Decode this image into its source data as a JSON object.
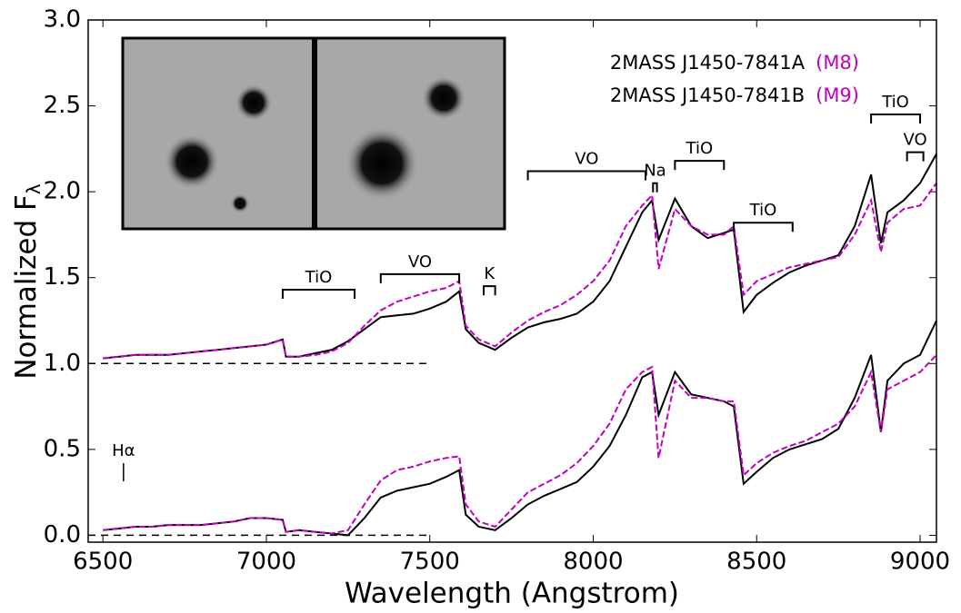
{
  "chart_data": {
    "type": "line",
    "xlabel": "Wavelength (Angstrom)",
    "ylabel": "Normalized F",
    "ylabel_sub": "λ",
    "xlim": [
      6455,
      9050
    ],
    "ylim": [
      -0.04,
      3.0
    ],
    "xticks": [
      6500,
      7000,
      7500,
      8000,
      8500,
      9000
    ],
    "yticks": [
      {
        "value": 0,
        "label": "0.0"
      },
      0.5,
      {
        "value": 1,
        "label": "1.0"
      },
      1.5,
      {
        "value": 2,
        "label": "2.0"
      },
      2.5,
      {
        "value": 3,
        "label": "3.0"
      }
    ],
    "x": [
      6500,
      6550,
      6600,
      6650,
      6700,
      6750,
      6800,
      6850,
      6900,
      6950,
      7000,
      7050,
      7060,
      7100,
      7150,
      7200,
      7250,
      7300,
      7350,
      7400,
      7450,
      7500,
      7550,
      7590,
      7610,
      7650,
      7700,
      7750,
      7800,
      7850,
      7900,
      7950,
      8000,
      8050,
      8100,
      8150,
      8180,
      8200,
      8250,
      8300,
      8350,
      8400,
      8430,
      8460,
      8500,
      8550,
      8600,
      8650,
      8700,
      8750,
      8800,
      8850,
      8880,
      8900,
      8950,
      9000,
      9050
    ],
    "series": [
      {
        "name": "2MASS J1450-7841A",
        "spectral_type": "(M8)",
        "color": "#000000",
        "dashed": false,
        "values": [
          1.03,
          1.04,
          1.05,
          1.05,
          1.05,
          1.06,
          1.07,
          1.08,
          1.09,
          1.1,
          1.11,
          1.14,
          1.04,
          1.04,
          1.06,
          1.08,
          1.13,
          1.2,
          1.27,
          1.28,
          1.29,
          1.32,
          1.36,
          1.42,
          1.2,
          1.12,
          1.08,
          1.15,
          1.21,
          1.24,
          1.26,
          1.29,
          1.36,
          1.48,
          1.68,
          1.88,
          1.95,
          1.72,
          1.96,
          1.8,
          1.73,
          1.76,
          1.78,
          1.3,
          1.4,
          1.47,
          1.53,
          1.57,
          1.6,
          1.63,
          1.8,
          2.1,
          1.7,
          1.88,
          1.95,
          2.05,
          2.22
        ]
      },
      {
        "name": "2MASS J1450-7841B",
        "spectral_type": "(M9)",
        "color": "#bf00bf",
        "dashed": true,
        "values": [
          1.03,
          1.04,
          1.05,
          1.05,
          1.05,
          1.06,
          1.07,
          1.08,
          1.09,
          1.1,
          1.11,
          1.14,
          1.04,
          1.04,
          1.05,
          1.07,
          1.12,
          1.22,
          1.31,
          1.36,
          1.39,
          1.42,
          1.44,
          1.48,
          1.22,
          1.14,
          1.1,
          1.18,
          1.25,
          1.3,
          1.34,
          1.4,
          1.48,
          1.6,
          1.8,
          1.92,
          1.98,
          1.55,
          1.9,
          1.8,
          1.75,
          1.75,
          1.8,
          1.4,
          1.48,
          1.52,
          1.56,
          1.58,
          1.6,
          1.62,
          1.75,
          1.95,
          1.65,
          1.82,
          1.9,
          1.92,
          2.05
        ]
      },
      {
        "color": "#000000",
        "dashed": false,
        "values": [
          0.03,
          0.04,
          0.05,
          0.05,
          0.06,
          0.06,
          0.06,
          0.07,
          0.08,
          0.1,
          0.1,
          0.09,
          0.02,
          0.03,
          0.02,
          0.01,
          0.0,
          0.1,
          0.22,
          0.26,
          0.28,
          0.3,
          0.34,
          0.38,
          0.12,
          0.05,
          0.03,
          0.1,
          0.18,
          0.23,
          0.27,
          0.31,
          0.4,
          0.52,
          0.7,
          0.92,
          0.95,
          0.7,
          0.95,
          0.82,
          0.8,
          0.78,
          0.75,
          0.3,
          0.37,
          0.45,
          0.5,
          0.53,
          0.56,
          0.62,
          0.8,
          1.05,
          0.6,
          0.9,
          1.0,
          1.05,
          1.25
        ]
      },
      {
        "color": "#bf00bf",
        "dashed": true,
        "values": [
          0.03,
          0.04,
          0.05,
          0.05,
          0.06,
          0.06,
          0.06,
          0.07,
          0.08,
          0.1,
          0.1,
          0.09,
          0.02,
          0.03,
          0.02,
          0.01,
          0.03,
          0.18,
          0.32,
          0.38,
          0.4,
          0.43,
          0.45,
          0.46,
          0.18,
          0.08,
          0.05,
          0.15,
          0.25,
          0.3,
          0.35,
          0.42,
          0.52,
          0.65,
          0.85,
          0.95,
          0.98,
          0.45,
          0.9,
          0.8,
          0.8,
          0.78,
          0.78,
          0.35,
          0.42,
          0.48,
          0.52,
          0.55,
          0.6,
          0.65,
          0.75,
          0.95,
          0.6,
          0.85,
          0.9,
          0.95,
          1.05
        ]
      }
    ],
    "reference_lines": [
      {
        "y": 1.0,
        "xmax": 7500
      },
      {
        "y": 0.0,
        "xmax": 7500
      }
    ],
    "annotations": [
      {
        "label": "TiO",
        "x0": 7050,
        "x1": 7270,
        "y": 1.43
      },
      {
        "label": "VO",
        "x0": 7350,
        "x1": 7590,
        "y": 1.52
      },
      {
        "label": "K",
        "x0": 7665,
        "x1": 7700,
        "y": 1.45
      },
      {
        "label": "VO",
        "x0": 7800,
        "x1": 8160,
        "y": 2.12
      },
      {
        "label": "Na",
        "x0": 8183,
        "x1": 8195,
        "y": 2.05
      },
      {
        "label": "TiO",
        "x0": 8250,
        "x1": 8400,
        "y": 2.18
      },
      {
        "label": "TiO",
        "x0": 8430,
        "x1": 8610,
        "y": 1.82
      },
      {
        "label": "TiO",
        "x0": 8850,
        "x1": 9000,
        "y": 2.45
      },
      {
        "label": "VO",
        "x0": 8960,
        "x1": 9010,
        "y": 2.23
      },
      {
        "label": "Hα",
        "x0": 6563,
        "x1": 6563,
        "y": 0.42
      }
    ]
  }
}
